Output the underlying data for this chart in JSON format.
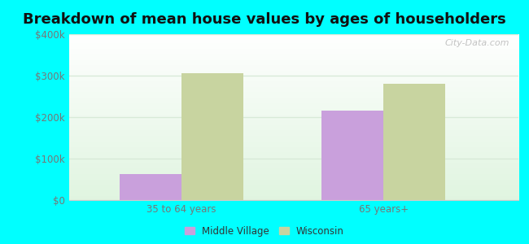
{
  "title": "Breakdown of mean house values by ages of householders",
  "categories": [
    "35 to 64 years",
    "65 years+"
  ],
  "series": {
    "Middle Village": [
      62000,
      215000
    ],
    "Wisconsin": [
      305000,
      280000
    ]
  },
  "bar_colors": {
    "Middle Village": "#c9a0dc",
    "Wisconsin": "#c8d4a0"
  },
  "ylim": [
    0,
    400000
  ],
  "yticks": [
    0,
    100000,
    200000,
    300000,
    400000
  ],
  "ytick_labels": [
    "$0",
    "$100k",
    "$200k",
    "$300k",
    "$400k"
  ],
  "background_color": "#00ffff",
  "grid_color": "#d8ead8",
  "title_fontsize": 13,
  "bar_width": 0.55,
  "group_centers": [
    1.0,
    2.8
  ]
}
